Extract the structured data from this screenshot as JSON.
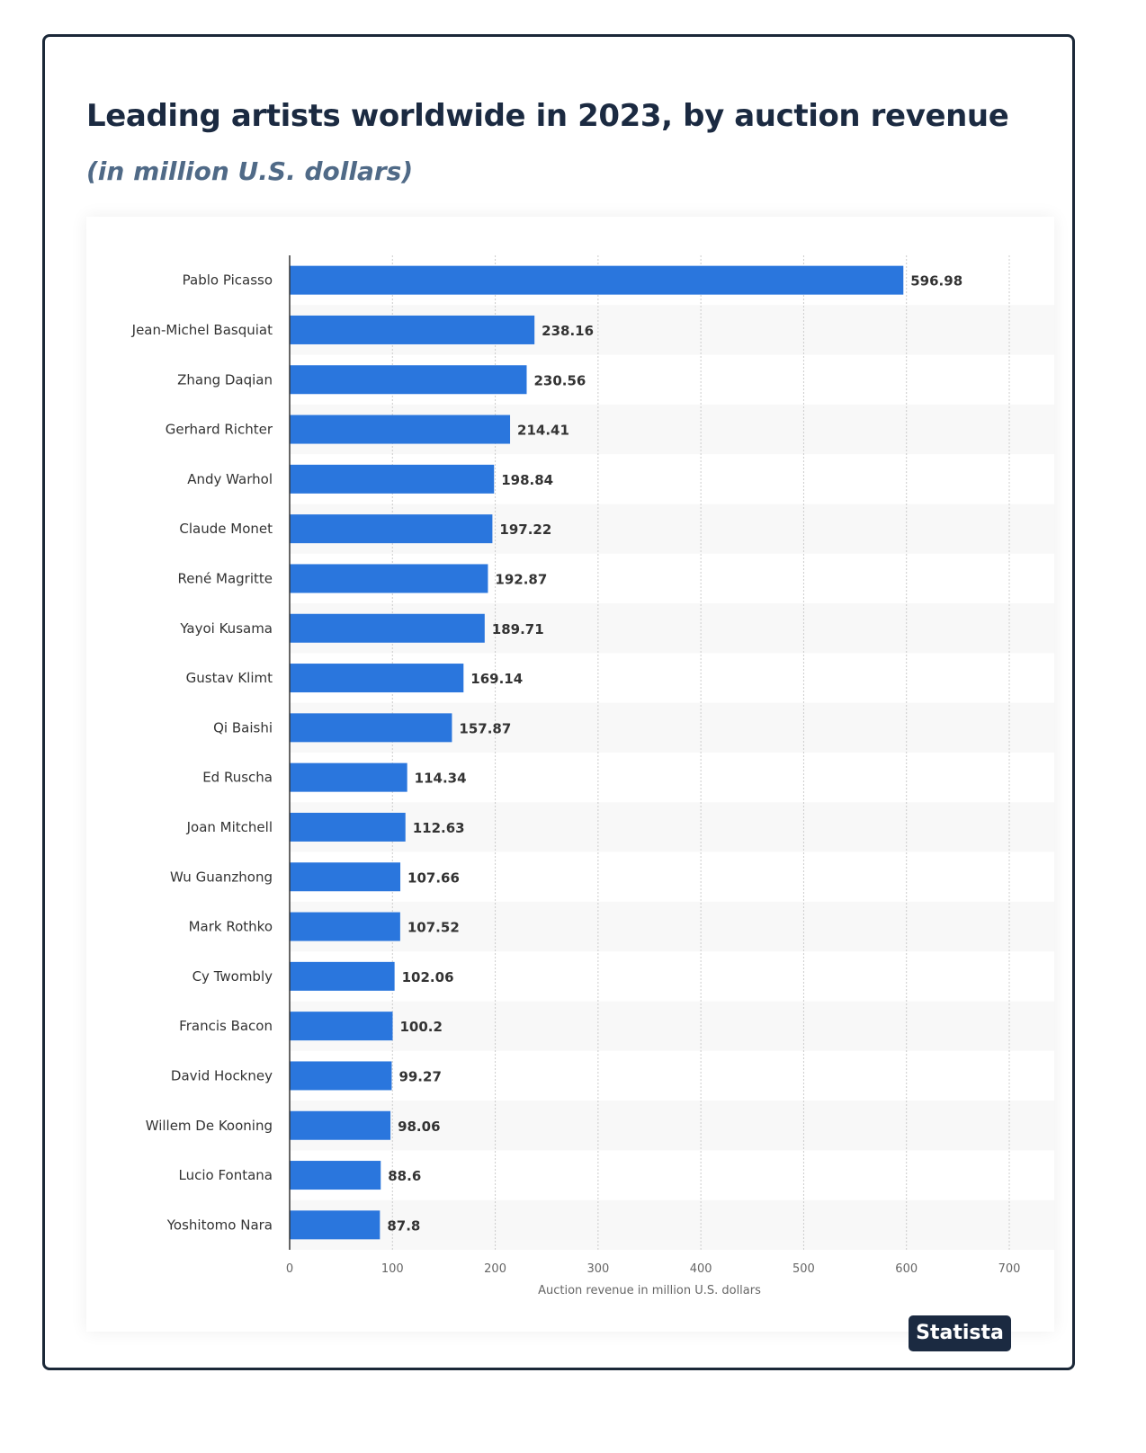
{
  "chart_data": {
    "type": "bar",
    "orientation": "horizontal",
    "title": "Leading artists worldwide in 2023, by auction revenue",
    "subtitle": "(in million U.S. dollars)",
    "xlabel": "Auction revenue in million U.S. dollars",
    "ylabel": "",
    "xlim": [
      0,
      700
    ],
    "ticks": [
      0,
      100,
      200,
      300,
      400,
      500,
      600,
      700
    ],
    "grid": true,
    "bar_color": "#2a76dd",
    "categories": [
      "Pablo Picasso",
      "Jean-Michel Basquiat",
      "Zhang Daqian",
      "Gerhard Richter",
      "Andy Warhol",
      "Claude Monet",
      "René Magritte",
      "Yayoi Kusama",
      "Gustav Klimt",
      "Qi Baishi",
      "Ed Ruscha",
      "Joan Mitchell",
      "Wu Guanzhong",
      "Mark Rothko",
      "Cy Twombly",
      "Francis Bacon",
      "David Hockney",
      "Willem De Kooning",
      "Lucio Fontana",
      "Yoshitomo Nara"
    ],
    "values": [
      596.98,
      238.16,
      230.56,
      214.41,
      198.84,
      197.22,
      192.87,
      189.71,
      169.14,
      157.87,
      114.34,
      112.63,
      107.66,
      107.52,
      102.06,
      100.2,
      99.27,
      98.06,
      88.6,
      87.8
    ]
  },
  "brand": {
    "badge": "Statista",
    "accent": "#1b2a41"
  }
}
